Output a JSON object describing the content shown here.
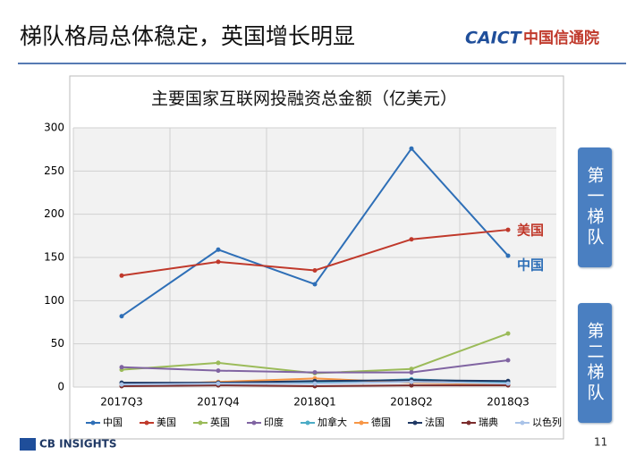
{
  "header": {
    "title": "梯队格局总体稳定，英国增长明显",
    "logo_en": "CAICT",
    "logo_cn": "中国信通院"
  },
  "chart_data": {
    "type": "line",
    "title": "主要国家互联网投融资总金额（亿美元）",
    "categories": [
      "2017Q3",
      "2017Q4",
      "2018Q1",
      "2018Q2",
      "2018Q3"
    ],
    "series": [
      {
        "name": "中国",
        "color": "#2e6fb7",
        "values": [
          82,
          159,
          119,
          276,
          152
        ]
      },
      {
        "name": "美国",
        "color": "#c0392b",
        "values": [
          129,
          145,
          135,
          171,
          182
        ]
      },
      {
        "name": "英国",
        "color": "#9bbb59",
        "values": [
          20,
          28,
          16,
          21,
          62
        ]
      },
      {
        "name": "印度",
        "color": "#8064a2",
        "values": [
          23,
          19,
          17,
          17,
          31
        ]
      },
      {
        "name": "加拿大",
        "color": "#4bacc6",
        "values": [
          3,
          5,
          5,
          9,
          5
        ]
      },
      {
        "name": "德国",
        "color": "#f79646",
        "values": [
          2,
          6,
          10,
          5,
          3
        ]
      },
      {
        "name": "法国",
        "color": "#1f3864",
        "values": [
          5,
          5,
          7,
          8,
          7
        ]
      },
      {
        "name": "瑞典",
        "color": "#7b2c2c",
        "values": [
          1,
          2,
          1,
          2,
          2
        ]
      },
      {
        "name": "以色列",
        "color": "#a9c3e8",
        "values": [
          3,
          4,
          4,
          6,
          4
        ]
      }
    ],
    "ylim": [
      0,
      300
    ],
    "yticks": [
      0,
      50,
      100,
      150,
      200,
      250,
      300
    ],
    "grid": true,
    "annotations": [
      {
        "text": "美国",
        "color": "#c0392b"
      },
      {
        "text": "中国",
        "color": "#2e6fb7"
      }
    ]
  },
  "tiers": [
    "第一梯队",
    "第二梯队"
  ],
  "footer": {
    "source": "CB INSIGHTS",
    "page": "11"
  }
}
